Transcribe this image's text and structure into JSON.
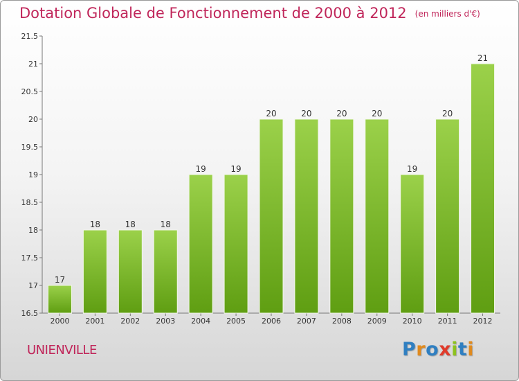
{
  "title": "Dotation Globale de Fonctionnement de 2000 à 2012",
  "unit_note": "(en milliers d'€)",
  "commune": "UNIENVILLE",
  "logo": {
    "text": "Proxiti",
    "letters": [
      {
        "ch": "P",
        "color": "#2f7fc1"
      },
      {
        "ch": "r",
        "color": "#e08a1e"
      },
      {
        "ch": "o",
        "color": "#2f7fc1"
      },
      {
        "ch": "x",
        "color": "#e03a2a"
      },
      {
        "ch": "i",
        "color": "#8dc21f"
      },
      {
        "ch": "t",
        "color": "#2f7fc1"
      },
      {
        "ch": "i",
        "color": "#e08a1e"
      }
    ]
  },
  "colors": {
    "title": "#c0265a",
    "bar_top": "#9bd14a",
    "bar_bottom": "#5f9e12"
  },
  "chart_data": {
    "type": "bar",
    "categories": [
      "2000",
      "2001",
      "2002",
      "2003",
      "2004",
      "2005",
      "2006",
      "2007",
      "2008",
      "2009",
      "2010",
      "2011",
      "2012"
    ],
    "values": [
      17,
      18,
      18,
      18,
      19,
      19,
      20,
      20,
      20,
      20,
      19,
      20,
      21
    ],
    "data_labels": [
      "17",
      "18",
      "18",
      "18",
      "19",
      "19",
      "20",
      "20",
      "20",
      "20",
      "19",
      "20",
      "21"
    ],
    "ylim": [
      16.5,
      21.5
    ],
    "yticks": [
      16.5,
      17,
      17.5,
      18,
      18.5,
      19,
      19.5,
      20,
      20.5,
      21,
      21.5
    ],
    "ytick_labels": [
      "16.5",
      "17",
      "17.5",
      "18",
      "18.5",
      "19",
      "19.5",
      "20",
      "20.5",
      "21",
      "21.5"
    ],
    "grid": false
  }
}
